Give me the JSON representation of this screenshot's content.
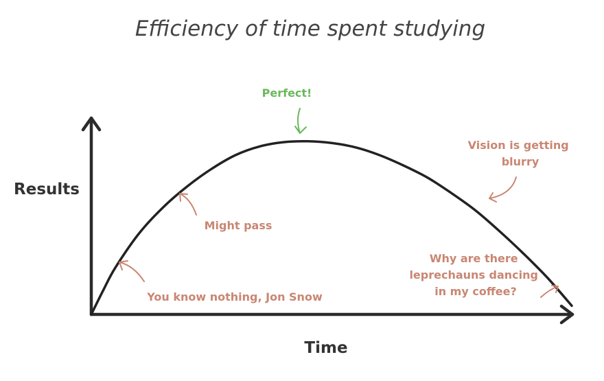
{
  "chart_data": {
    "type": "line",
    "title": "Efficiency of time spent studying",
    "xlabel": "Time",
    "ylabel": "Results",
    "grid": false,
    "legend": "none",
    "curve": {
      "x": [
        0,
        0.025,
        0.05,
        0.1,
        0.15,
        0.2,
        0.25,
        0.3,
        0.35,
        0.4,
        0.45,
        0.5,
        0.55,
        0.6,
        0.65,
        0.7,
        0.75,
        0.8,
        0.85,
        0.9,
        0.95,
        1.0
      ],
      "y": [
        0,
        0.14,
        0.27,
        0.47,
        0.62,
        0.74,
        0.84,
        0.92,
        0.97,
        0.995,
        1.0,
        0.99,
        0.965,
        0.92,
        0.86,
        0.79,
        0.7,
        0.6,
        0.48,
        0.35,
        0.21,
        0.05
      ],
      "xlim": [
        0,
        1.05
      ],
      "ylim": [
        0,
        1.15
      ]
    },
    "annotations": [
      {
        "text": "Perfect!",
        "color": "#6ab85c",
        "arrow": "down"
      },
      {
        "text": "Vision is getting blurry",
        "line1": "Vision is getting",
        "line2": "blurry",
        "color": "#c98672",
        "arrow": "down-left"
      },
      {
        "text": "Might pass",
        "color": "#c98672",
        "arrow": "up-left"
      },
      {
        "text": "You know nothing, Jon Snow",
        "color": "#c98672",
        "arrow": "up-left"
      },
      {
        "text": "Why are there leprechauns dancing in my coffee?",
        "line1": "Why are there",
        "line2": "leprechauns dancing",
        "line3": "in my coffee?",
        "color": "#c98672",
        "arrow": "up-right"
      }
    ]
  },
  "colors": {
    "axis": "#2b2b2b",
    "curve": "#222222",
    "title": "#444444",
    "positive": "#6ab85c",
    "negative": "#c98672"
  }
}
